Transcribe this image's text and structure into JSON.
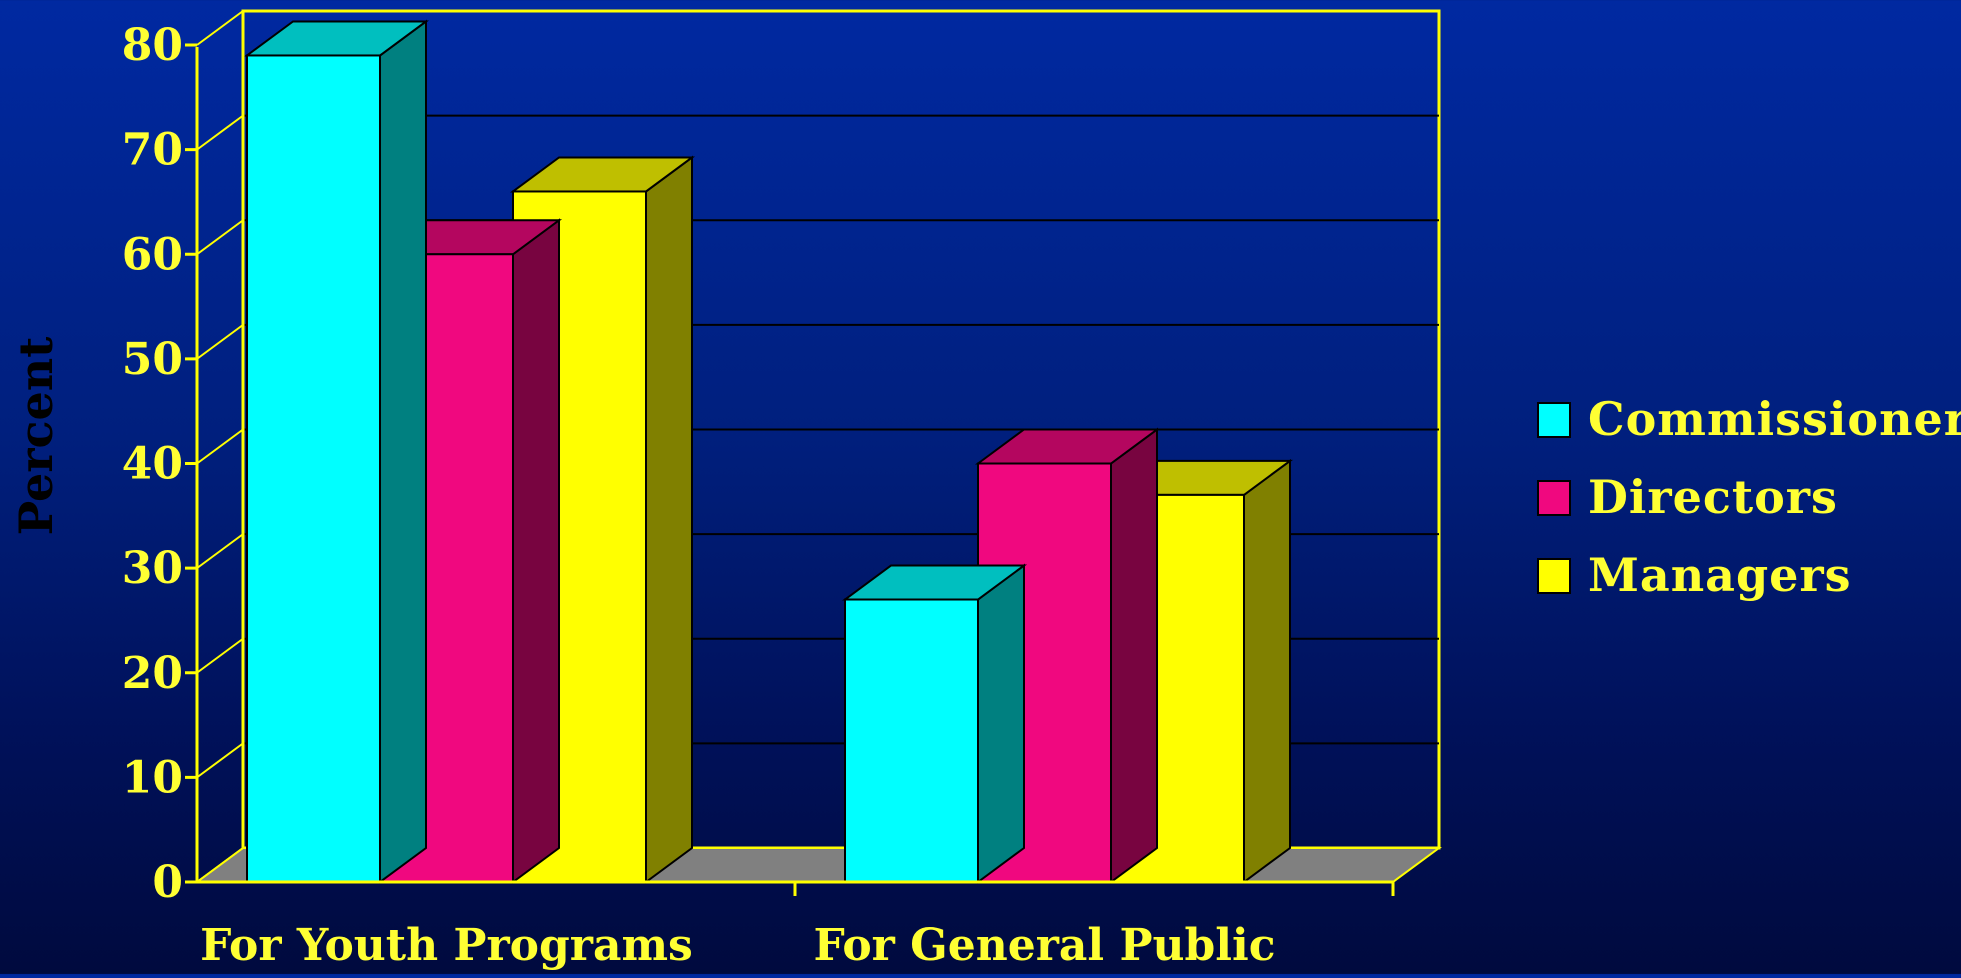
{
  "chart_data": {
    "type": "bar",
    "title": "",
    "xlabel": "",
    "ylabel": "Percent",
    "ylim": [
      0,
      80
    ],
    "yticks": [
      0,
      10,
      20,
      30,
      40,
      50,
      60,
      70,
      80
    ],
    "grid": true,
    "three_d": true,
    "legend_position": "right",
    "categories": [
      "For Youth Programs",
      "For General Public"
    ],
    "series": [
      {
        "name": "Commissioners",
        "values": [
          79,
          27
        ],
        "color": "#00ffff"
      },
      {
        "name": "Directors",
        "values": [
          60,
          40
        ],
        "color": "#f0087f"
      },
      {
        "name": "Managers",
        "values": [
          66,
          37
        ],
        "color": "#ffff00"
      }
    ],
    "colors": {
      "axis": "#ffff00",
      "text": "#ffff33",
      "gridline": "#000000",
      "floor": "#808080"
    }
  }
}
